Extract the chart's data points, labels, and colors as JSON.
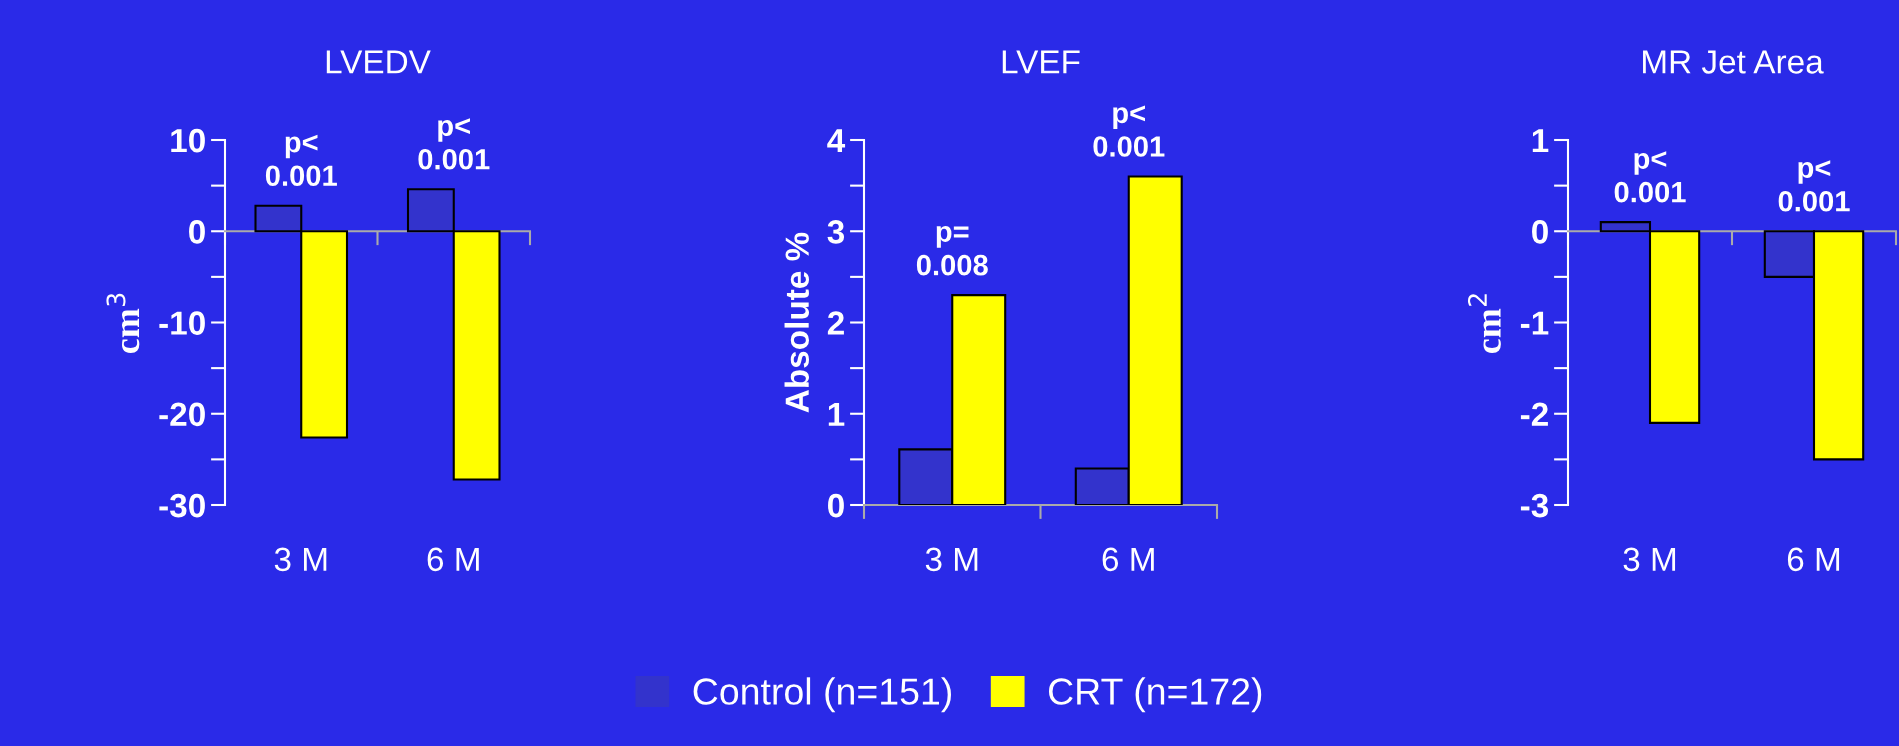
{
  "chart_data": [
    {
      "type": "bar",
      "title": "LVEDV",
      "ylabel": "cm$^{3}$",
      "categories": [
        "3 M",
        "6 M"
      ],
      "series": [
        {
          "name": "Control (n=151)",
          "color": "#3333cc",
          "values": [
            2.8,
            4.6
          ]
        },
        {
          "name": "CRT (n=172)",
          "color": "#ffff00",
          "values": [
            -22.6,
            -27.2
          ]
        }
      ],
      "ylim": [
        -30,
        10
      ],
      "yticks": [
        -30,
        {
          "value": -25,
          "label": null
        },
        -20,
        {
          "value": -15,
          "label": null
        },
        -10,
        {
          "value": -5,
          "label": null
        },
        0,
        {
          "value": 5,
          "label": null
        },
        10
      ],
      "legend": "bottom",
      "annotations": [
        "p<\n0.001",
        "p<\n0.001"
      ]
    },
    {
      "type": "bar",
      "title": "LVEF",
      "ylabel": "Absolute %",
      "categories": [
        "3 M",
        "6 M"
      ],
      "series": [
        {
          "color": "#3333cc",
          "values": [
            0.61,
            0.4
          ]
        },
        {
          "color": "#ffff00",
          "values": [
            2.3,
            3.6
          ]
        }
      ],
      "ylim": [
        0,
        4
      ],
      "yticks": [
        0,
        {
          "value": 0.5,
          "label": null
        },
        1,
        {
          "value": 1.5,
          "label": null
        },
        2,
        {
          "value": 2.5,
          "label": null
        },
        3,
        {
          "value": 3.5,
          "label": null
        },
        4
      ],
      "annotations": [
        "p=\n0.008",
        "p<\n0.001"
      ]
    },
    {
      "type": "bar",
      "title": "MR Jet Area",
      "ylabel": "cm$^{2}$",
      "categories": [
        "3 M",
        "6 M"
      ],
      "series": [
        {
          "color": "#3333cc",
          "values": [
            0.1,
            -0.5
          ]
        },
        {
          "color": "#ffff00",
          "values": [
            -2.1,
            -2.5
          ]
        }
      ],
      "ylim": [
        -3,
        1
      ],
      "yticks": [
        -3,
        {
          "value": -2.5,
          "label": null
        },
        -2,
        {
          "value": -1.5,
          "label": null
        },
        -1,
        {
          "value": -0.5,
          "label": null
        },
        0,
        {
          "value": 0.5,
          "label": null
        },
        1
      ],
      "annotations": [
        "p<\n0.001",
        "p<\n0.001"
      ]
    }
  ]
}
